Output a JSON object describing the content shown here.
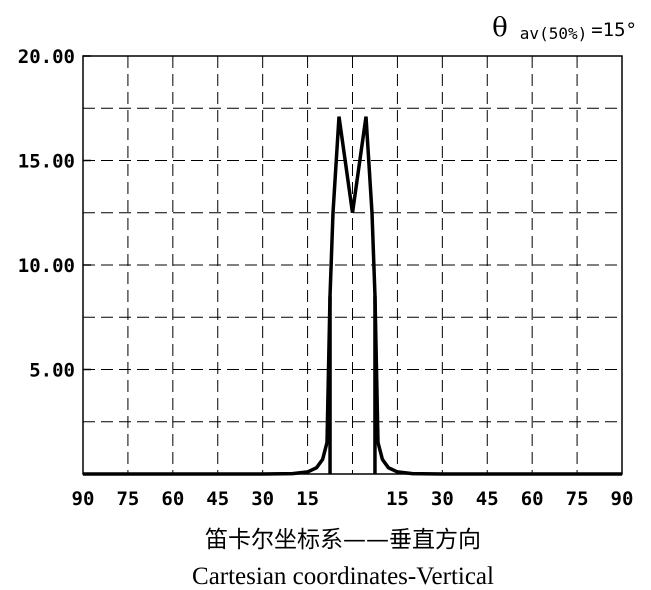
{
  "annotation": {
    "symbol": "θ",
    "subscript": "av(50%)",
    "value": "=15°"
  },
  "chart_data": {
    "type": "line",
    "title": "",
    "xlabel": "笛卡尔坐标系——垂直方向",
    "xlabel_en": "Cartesian coordinates-Vertical",
    "ylabel": "",
    "xlim": [
      -90,
      90
    ],
    "ylim": [
      0,
      20
    ],
    "grid": true,
    "grid_style": "dashed",
    "x_tick_values": [
      -90,
      -75,
      -60,
      -45,
      -30,
      -15,
      0,
      15,
      30,
      45,
      60,
      75,
      90
    ],
    "x_tick_labels": [
      "90",
      "75",
      "60",
      "45",
      "30",
      "15",
      "",
      "15",
      "30",
      "45",
      "60",
      "75",
      "90"
    ],
    "y_tick_values": [
      5,
      10,
      15,
      20
    ],
    "y_tick_labels": [
      "5.00",
      "10.00",
      "15.00",
      "20.00"
    ],
    "y_minor_grid": [
      2.5,
      7.5,
      12.5,
      17.5
    ],
    "series": [
      {
        "color": "#000000",
        "x": [
          -90,
          -30,
          -20,
          -15,
          -12,
          -10,
          -8.5,
          -7.5,
          -6.5,
          -4.5,
          0,
          4.5,
          6.5,
          7.5,
          8.5,
          10,
          12,
          15,
          20,
          30,
          90
        ],
        "y": [
          0,
          0,
          0.02,
          0.1,
          0.3,
          0.7,
          1.5,
          8.5,
          12.5,
          17.1,
          12.5,
          17.1,
          12.5,
          8.5,
          1.5,
          0.7,
          0.3,
          0.1,
          0.02,
          0,
          0
        ]
      }
    ],
    "vertical_markers": [
      -7.5,
      7.5
    ]
  }
}
